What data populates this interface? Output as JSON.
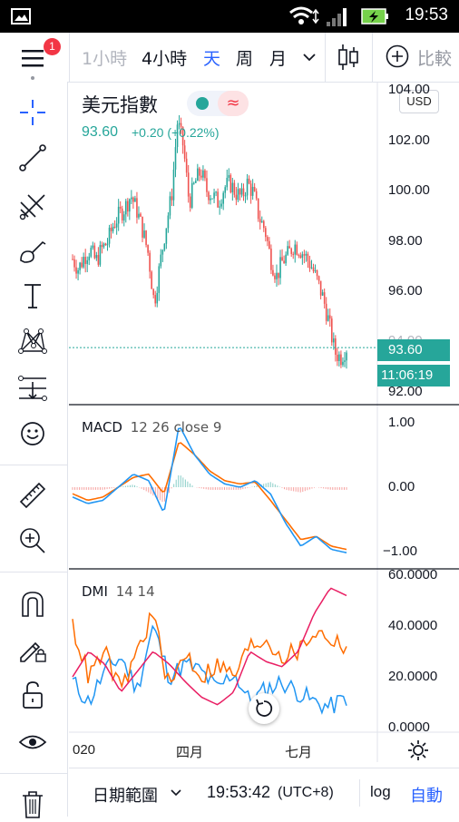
{
  "status_bar": {
    "time": "19:53"
  },
  "toolbar": {
    "menu_badge": "1",
    "intervals": [
      "1小時",
      "4小時",
      "天",
      "周",
      "月"
    ],
    "active_interval": "天",
    "compare_label": "比較"
  },
  "symbol": {
    "name": "美元指數",
    "price": "93.60",
    "change": "+0.20 (+0.22%)",
    "currency": "USD"
  },
  "price_axis": {
    "ticks": [
      "104.00",
      "102.00",
      "100.00",
      "98.00",
      "96.00",
      "94.00",
      "92.00"
    ],
    "last_price_label": "93.60",
    "countdown_label": "11:06:19"
  },
  "macd": {
    "title": "MACD",
    "params": "12 26 close 9",
    "ticks": [
      "1.00",
      "0.00",
      "−1.00"
    ]
  },
  "dmi": {
    "title": "DMI",
    "params": "14 14",
    "ticks": [
      "60.0000",
      "40.0000",
      "20.0000",
      "0.0000"
    ]
  },
  "time_axis": {
    "labels": [
      "020",
      "四月",
      "七月"
    ]
  },
  "bottom_bar": {
    "date_range_label": "日期範圍",
    "clock": "19:53:42",
    "timezone": "(UTC+8)",
    "log_label": "log",
    "auto_label": "自動"
  },
  "colors": {
    "up": "#26a69a",
    "down": "#ef5350",
    "accent": "#2962ff",
    "macd_line": "#2196f3",
    "signal_line": "#ff6d00",
    "dmi_plus": "#2196f3",
    "dmi_minus": "#ff6d00",
    "adx": "#e91e63"
  },
  "chart_data": [
    {
      "type": "candlestick",
      "title": "美元指數",
      "ylim": [
        91.5,
        104.2
      ],
      "x_labels": [
        "020",
        "四月",
        "七月"
      ],
      "close_path": [
        97.2,
        96.8,
        97.3,
        97.6,
        97.1,
        97.6,
        97.9,
        98.6,
        99.0,
        99.3,
        99.8,
        99.2,
        98.4,
        97.4,
        95.4,
        97.0,
        98.5,
        99.8,
        102.8,
        101.8,
        99.5,
        100.3,
        100.8,
        100.0,
        99.8,
        99.5,
        100.1,
        100.3,
        99.9,
        99.7,
        100.3,
        99.9,
        98.9,
        98.4,
        97.2,
        96.5,
        97.1,
        97.4,
        97.8,
        97.6,
        97.3,
        96.9,
        96.3,
        95.6,
        94.6,
        93.4,
        93.2,
        93.6
      ]
    },
    {
      "type": "line",
      "title": "MACD",
      "ylim": [
        -1.15,
        1.15
      ],
      "series": [
        {
          "name": "MACD",
          "values": [
            -0.15,
            -0.25,
            -0.2,
            0.0,
            0.2,
            0.1,
            -0.4,
            0.95,
            0.5,
            0.2,
            0.05,
            0.0,
            0.1,
            -0.1,
            -0.55,
            -0.9,
            -0.75,
            -0.95,
            -1.0
          ]
        },
        {
          "name": "signal",
          "values": [
            -0.1,
            -0.2,
            -0.15,
            0.0,
            0.15,
            0.2,
            -0.1,
            0.7,
            0.5,
            0.25,
            0.1,
            0.05,
            0.08,
            -0.2,
            -0.5,
            -0.8,
            -0.75,
            -0.9,
            -0.95
          ]
        }
      ]
    },
    {
      "type": "line",
      "title": "DMI",
      "ylim": [
        0,
        60
      ],
      "series": [
        {
          "name": "+DI",
          "values": [
            18,
            10,
            22,
            28,
            15,
            40,
            20,
            25,
            22,
            15,
            22,
            10,
            15,
            18,
            14,
            10,
            8,
            12
          ]
        },
        {
          "name": "-DI",
          "values": [
            40,
            20,
            30,
            14,
            30,
            45,
            15,
            30,
            20,
            25,
            20,
            32,
            35,
            28,
            30,
            38,
            35,
            32
          ]
        },
        {
          "name": "ADX",
          "values": [
            20,
            30,
            25,
            14,
            22,
            30,
            25,
            18,
            12,
            9,
            14,
            30,
            26,
            24,
            30,
            45,
            55,
            52
          ]
        }
      ]
    }
  ]
}
